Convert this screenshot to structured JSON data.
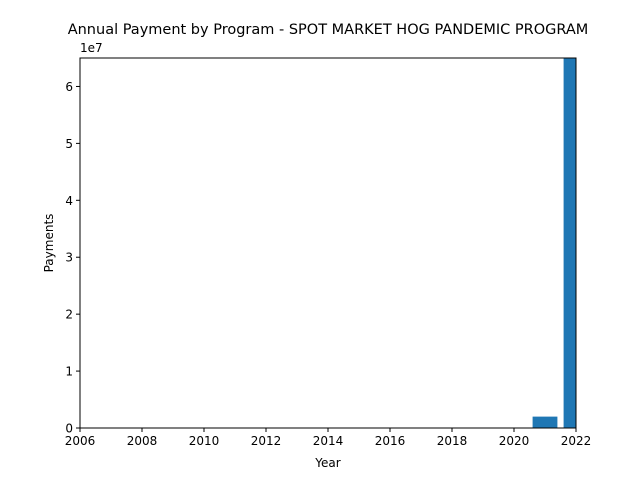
{
  "chart_data": {
    "type": "bar",
    "title": "Annual Payment by Program - SPOT MARKET HOG PANDEMIC PROGRAM",
    "xlabel": "Year",
    "ylabel": "Payments",
    "y_offset_label": "1e7",
    "xlim": [
      2006,
      2022
    ],
    "ylim": [
      0,
      65000000
    ],
    "x_ticks": [
      2006,
      2008,
      2010,
      2012,
      2014,
      2016,
      2018,
      2020,
      2022
    ],
    "y_ticks": [
      0,
      1,
      2,
      3,
      4,
      5,
      6
    ],
    "y_tick_scale": 10000000,
    "bar_width_years": 0.8,
    "bars": [
      {
        "x": 2021,
        "value": 2000000
      },
      {
        "x": 2022,
        "value": 65000000
      }
    ],
    "bar_color": "#1f77b4",
    "grid": false,
    "legend": "none"
  }
}
